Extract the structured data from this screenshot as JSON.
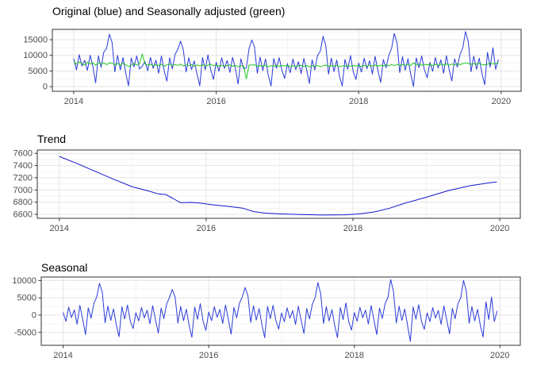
{
  "page": {
    "background": "#ffffff"
  },
  "chart_data": [
    {
      "id": "original-vs-adjusted",
      "type": "line",
      "title": "Original (blue) and Seasonally adjusted (green)",
      "xlim": [
        2013.7,
        2020.28
      ],
      "ylim": [
        -1500,
        18300
      ],
      "xticks": [
        2014,
        2016,
        2018,
        2020
      ],
      "xticks_minor": [
        2015,
        2017,
        2019
      ],
      "yticks": [
        0,
        5000,
        10000,
        15000
      ],
      "yticks_minor": [
        2500,
        7500,
        12500,
        17500
      ],
      "x_start": 2014.0,
      "x_step": 0.038462,
      "grid": true,
      "legend": "in title",
      "series": [
        {
          "name": "Original",
          "color": "#2b3cd9",
          "values": [
            9000,
            5350,
            10200,
            6600,
            8400,
            5200,
            10000,
            6400,
            1200,
            9800,
            6200,
            11050,
            12200,
            16750,
            14100,
            4700,
            10000,
            5300,
            9300,
            4200,
            250,
            9150,
            6300,
            9800,
            5600,
            6500,
            8000,
            5100,
            9350,
            5800,
            8450,
            4250,
            9800,
            5200,
            1750,
            9200,
            5650,
            10350,
            11900,
            14550,
            11800,
            4650,
            9200,
            5450,
            8200,
            4000,
            250,
            9300,
            5350,
            10150,
            5350,
            2300,
            7800,
            4900,
            9250,
            5820,
            8360,
            4550,
            9360,
            5700,
            820,
            8900,
            5720,
            5950,
            12180,
            14900,
            12580,
            4300,
            9450,
            5150,
            8800,
            3650,
            200,
            9000,
            5850,
            9250,
            5150,
            2600,
            7350,
            4450,
            8800,
            5400,
            7950,
            4150,
            9000,
            5350,
            1000,
            8550,
            5350,
            10000,
            11350,
            16100,
            13100,
            3980,
            9120,
            4820,
            8470,
            3320,
            170,
            8670,
            5520,
            9920,
            4820,
            2270,
            7500,
            4650,
            9050,
            5700,
            8300,
            4000,
            9700,
            5250,
            1300,
            8650,
            6050,
            10000,
            12200,
            17000,
            13900,
            4500,
            9550,
            5250,
            8900,
            3850,
            50,
            9200,
            6050,
            9800,
            5350,
            2850,
            7750,
            4900,
            9300,
            5950,
            8550,
            4250,
            9900,
            5500,
            1800,
            8900,
            6250,
            10250,
            12400,
            17600,
            14400,
            4750,
            9750,
            5500,
            9100,
            4100,
            600,
            10950,
            6250,
            12400,
            5550,
            8600
          ]
        },
        {
          "name": "Seasonally adjusted",
          "color": "#1fc41f",
          "values": [
            8200,
            7150,
            7900,
            7300,
            6900,
            7800,
            7200,
            7600,
            6800,
            7700,
            7100,
            7650,
            7000,
            7550,
            7500,
            6900,
            7400,
            6800,
            7500,
            7000,
            6450,
            6750,
            7400,
            6900,
            7300,
            10400,
            7300,
            6800,
            7150,
            6600,
            7050,
            6750,
            7100,
            6500,
            6950,
            7200,
            6650,
            7050,
            6800,
            7150,
            6600,
            6950,
            6700,
            7050,
            6500,
            6900,
            6650,
            7000,
            6550,
            6850,
            7150,
            6700,
            6900,
            6500,
            6850,
            6420,
            6760,
            6950,
            6460,
            6800,
            6320,
            6700,
            6520,
            2450,
            6880,
            6900,
            6980,
            6400,
            6750,
            6550,
            6900,
            6350,
            6700,
            6500,
            6850,
            6450,
            6750,
            6600,
            6750,
            6350,
            6700,
            6300,
            6650,
            6850,
            6400,
            6750,
            6300,
            6650,
            6450,
            6800,
            6350,
            6700,
            6900,
            6380,
            6720,
            6520,
            6870,
            6320,
            6670,
            6470,
            6820,
            6420,
            6720,
            6570,
            6750,
            6400,
            6800,
            6450,
            6850,
            6550,
            6950,
            6500,
            6900,
            6600,
            7000,
            6650,
            7050,
            6700,
            7100,
            6750,
            7000,
            6800,
            7150,
            6700,
            7650,
            6850,
            7200,
            6800,
            7100,
            6950,
            7100,
            6750,
            7150,
            6800,
            7200,
            6900,
            7250,
            6850,
            7200,
            6950,
            7300,
            7000,
            7350,
            7600,
            7400,
            7100,
            7300,
            7150,
            7450,
            7050,
            6900,
            7150,
            7500,
            7200,
            7400,
            7400
          ]
        }
      ]
    },
    {
      "id": "trend",
      "type": "line",
      "title": "Trend",
      "xlim": [
        2013.7,
        2020.28
      ],
      "ylim": [
        6535,
        7655
      ],
      "xticks": [
        2014,
        2016,
        2018,
        2020
      ],
      "xticks_minor": [
        2015,
        2017,
        2019
      ],
      "yticks": [
        6600,
        6800,
        7000,
        7200,
        7400,
        7600
      ],
      "yticks_minor": [
        6700,
        6900,
        7100,
        7300,
        7500
      ],
      "grid": true,
      "series": [
        {
          "name": "Trend",
          "color": "#1515cd",
          "x": [
            2014.0,
            2014.25,
            2014.5,
            2014.75,
            2015.0,
            2015.2,
            2015.35,
            2015.45,
            2015.55,
            2015.65,
            2015.8,
            2015.95,
            2016.1,
            2016.3,
            2016.5,
            2016.65,
            2016.8,
            2017.0,
            2017.3,
            2017.6,
            2017.9,
            2018.1,
            2018.3,
            2018.5,
            2018.7,
            2019.0,
            2019.3,
            2019.6,
            2019.9,
            2019.96
          ],
          "y": [
            7550,
            7430,
            7300,
            7170,
            7050,
            6990,
            6935,
            6925,
            6860,
            6790,
            6795,
            6780,
            6755,
            6730,
            6700,
            6645,
            6620,
            6608,
            6595,
            6588,
            6592,
            6608,
            6640,
            6700,
            6780,
            6880,
            6990,
            7070,
            7125,
            7132
          ]
        }
      ]
    },
    {
      "id": "seasonal",
      "type": "line",
      "title": "Seasonal",
      "xlim": [
        2013.7,
        2020.28
      ],
      "ylim": [
        -8700,
        11000
      ],
      "xticks": [
        2014,
        2016,
        2018,
        2020
      ],
      "xticks_minor": [
        2015,
        2017,
        2019
      ],
      "yticks": [
        -5000,
        0,
        5000,
        10000
      ],
      "yticks_minor": [
        -7500,
        -2500,
        2500,
        7500
      ],
      "x_start": 2014.0,
      "x_step": 0.038462,
      "grid": true,
      "series": [
        {
          "name": "Seasonal",
          "color": "#2b3cd9",
          "values": [
            800,
            -1800,
            2300,
            -700,
            1500,
            -2600,
            2800,
            -1200,
            -5600,
            2100,
            -900,
            3400,
            5200,
            9200,
            6600,
            -2200,
            2600,
            -1500,
            1800,
            -2800,
            -6200,
            2400,
            -1100,
            2900,
            -1700,
            -3900,
            700,
            -1700,
            2200,
            -800,
            1400,
            -2500,
            2700,
            -1300,
            -5200,
            2000,
            -1000,
            3300,
            5100,
            7400,
            5200,
            -2300,
            2500,
            -1600,
            1700,
            -2900,
            -6400,
            2300,
            -1200,
            3300,
            -1800,
            -4400,
            900,
            -1600,
            2400,
            -600,
            1600,
            -2400,
            2900,
            -1100,
            -5500,
            2200,
            -800,
            3500,
            5300,
            8000,
            5600,
            -2100,
            2700,
            -1400,
            1900,
            -2700,
            -6500,
            2500,
            -1000,
            2800,
            -1600,
            -4000,
            600,
            -1900,
            2100,
            -900,
            1300,
            -2700,
            2600,
            -1400,
            -5300,
            1900,
            -1100,
            3200,
            5000,
            9400,
            6200,
            -2400,
            2400,
            -1700,
            1600,
            -3000,
            -6500,
            2200,
            -1300,
            3500,
            -1900,
            -4300,
            750,
            -1750,
            2250,
            -750,
            1450,
            -2550,
            2750,
            -1250,
            -5600,
            2050,
            -950,
            3350,
            5150,
            10300,
            6800,
            -2250,
            2550,
            -1550,
            1750,
            -2850,
            -7600,
            2350,
            -1150,
            3000,
            -1750,
            -4100,
            650,
            -1850,
            2150,
            -850,
            1350,
            -2650,
            2650,
            -1350,
            -5400,
            1950,
            -1050,
            3250,
            5050,
            10000,
            7000,
            -2350,
            2450,
            -1650,
            1650,
            -2950,
            -6300,
            3800,
            -1250,
            5200,
            -1850,
            1200
          ]
        }
      ]
    }
  ],
  "theme": {
    "panel_border": "#454545",
    "grid_major": "#e4e4e4",
    "grid_minor": "#f3f3f3",
    "tick_color": "#333333",
    "tick_label_color": "#4d4d4d",
    "title_color": "#000000"
  }
}
